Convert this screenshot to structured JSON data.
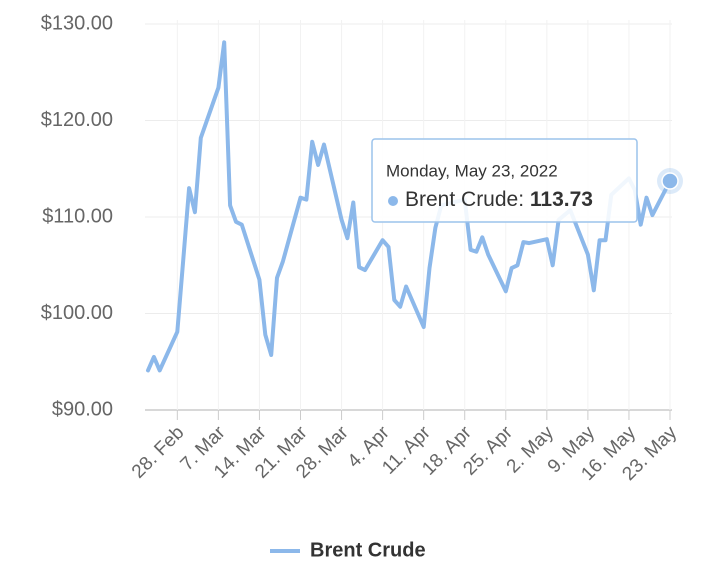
{
  "chart_data": {
    "type": "line",
    "x": [
      "2022-02-23",
      "2022-02-24",
      "2022-02-25",
      "2022-02-28",
      "2022-03-01",
      "2022-03-02",
      "2022-03-03",
      "2022-03-04",
      "2022-03-07",
      "2022-03-08",
      "2022-03-09",
      "2022-03-10",
      "2022-03-11",
      "2022-03-14",
      "2022-03-15",
      "2022-03-16",
      "2022-03-17",
      "2022-03-18",
      "2022-03-21",
      "2022-03-22",
      "2022-03-23",
      "2022-03-24",
      "2022-03-25",
      "2022-03-28",
      "2022-03-29",
      "2022-03-30",
      "2022-03-31",
      "2022-04-01",
      "2022-04-04",
      "2022-04-05",
      "2022-04-06",
      "2022-04-07",
      "2022-04-08",
      "2022-04-11",
      "2022-04-12",
      "2022-04-13",
      "2022-04-14",
      "2022-04-18",
      "2022-04-19",
      "2022-04-20",
      "2022-04-21",
      "2022-04-22",
      "2022-04-25",
      "2022-04-26",
      "2022-04-27",
      "2022-04-28",
      "2022-04-29",
      "2022-05-02",
      "2022-05-03",
      "2022-05-04",
      "2022-05-05",
      "2022-05-06",
      "2022-05-09",
      "2022-05-10",
      "2022-05-11",
      "2022-05-12",
      "2022-05-13",
      "2022-05-16",
      "2022-05-17",
      "2022-05-18",
      "2022-05-19",
      "2022-05-20",
      "2022-05-23"
    ],
    "series": [
      {
        "name": "Brent Crude",
        "color": "#8cb8ea",
        "values": [
          94.1,
          95.5,
          94.1,
          98.1,
          105.5,
          113.0,
          110.5,
          118.2,
          123.4,
          128.1,
          111.2,
          109.5,
          109.2,
          103.5,
          97.8,
          95.7,
          103.7,
          105.4,
          112.0,
          111.8,
          117.8,
          115.4,
          117.5,
          109.7,
          107.8,
          111.5,
          104.8,
          104.5,
          107.6,
          106.9,
          101.4,
          100.7,
          102.8,
          98.6,
          104.7,
          108.9,
          111.2,
          111.8,
          106.6,
          106.4,
          107.9,
          106.1,
          102.3,
          104.7,
          105.0,
          107.4,
          107.3,
          107.7,
          105.0,
          109.7,
          110.2,
          110.7,
          106.1,
          102.4,
          107.6,
          107.6,
          112.3,
          114.0,
          112.8,
          109.2,
          112.0,
          110.2,
          113.73
        ]
      }
    ],
    "xlim": [
      "2022-02-23",
      "2022-05-23"
    ],
    "xticks": [
      {
        "value": "2022-02-28",
        "label": "28. Feb"
      },
      {
        "value": "2022-03-07",
        "label": "7. Mar"
      },
      {
        "value": "2022-03-14",
        "label": "14. Mar"
      },
      {
        "value": "2022-03-21",
        "label": "21. Mar"
      },
      {
        "value": "2022-03-28",
        "label": "28. Mar"
      },
      {
        "value": "2022-04-04",
        "label": "4. Apr"
      },
      {
        "value": "2022-04-11",
        "label": "11. Apr"
      },
      {
        "value": "2022-04-18",
        "label": "18. Apr"
      },
      {
        "value": "2022-04-25",
        "label": "25. Apr"
      },
      {
        "value": "2022-05-02",
        "label": "2. May"
      },
      {
        "value": "2022-05-09",
        "label": "9. May"
      },
      {
        "value": "2022-05-16",
        "label": "16. May"
      },
      {
        "value": "2022-05-23",
        "label": "23. May"
      }
    ],
    "ylim": [
      90,
      130
    ],
    "yticks": [
      {
        "value": 90,
        "label": "$90.00"
      },
      {
        "value": 100,
        "label": "$100.00"
      },
      {
        "value": 110,
        "label": "$110.00"
      },
      {
        "value": 120,
        "label": "$120.00"
      },
      {
        "value": 130,
        "label": "$130.00"
      }
    ],
    "grid": true,
    "legend": "bottom",
    "tooltip": {
      "header": "Monday, May 23, 2022"
    }
  }
}
